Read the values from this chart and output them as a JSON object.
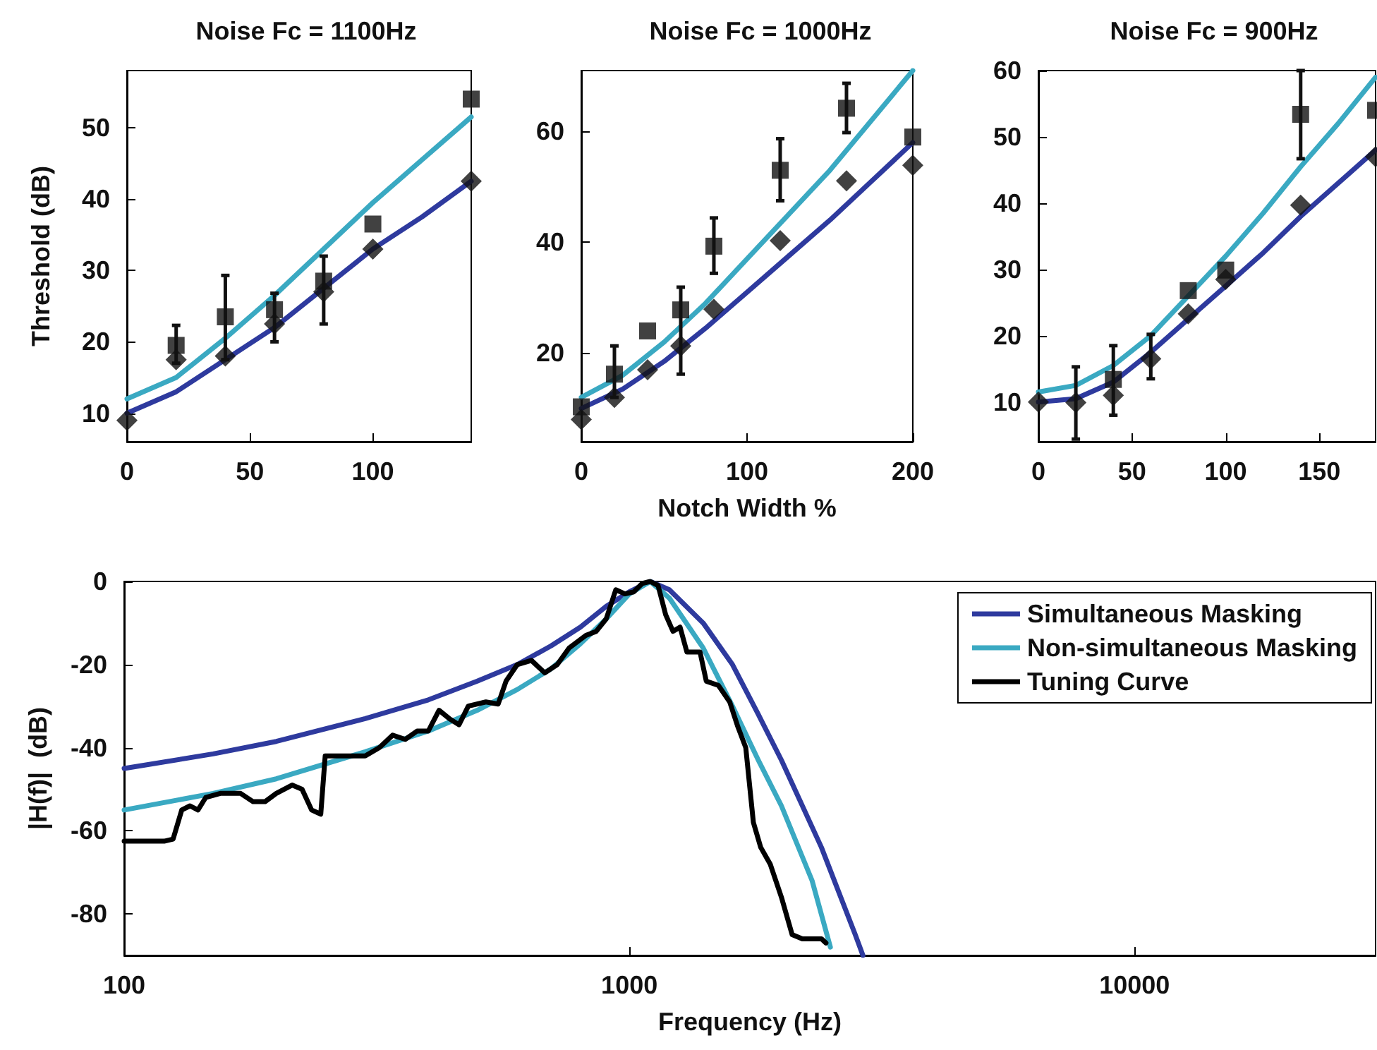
{
  "chart_data": [
    {
      "type": "line",
      "title": "Noise Fc = 1100Hz",
      "ylabel": "Threshold (dB)",
      "xlim": [
        0,
        140
      ],
      "ylim": [
        6,
        58
      ],
      "xticks": [
        0,
        50,
        100
      ],
      "yticks": [
        10,
        20,
        30,
        40,
        50
      ],
      "grid": false,
      "series": [
        {
          "type": "line",
          "color": "#3aa9c2",
          "x": [
            0,
            20,
            40,
            60,
            80,
            100,
            120,
            140
          ],
          "values": [
            12,
            15,
            20.5,
            26.5,
            33,
            39.5,
            45.5,
            51.5
          ]
        },
        {
          "type": "line",
          "color": "#2e3a9e",
          "x": [
            0,
            20,
            40,
            60,
            80,
            100,
            120,
            140
          ],
          "values": [
            10,
            13,
            17.5,
            22,
            27.5,
            33,
            37.5,
            42.5
          ]
        },
        {
          "type": "scatter",
          "marker": "square",
          "color": "#111111",
          "x": [
            20,
            40,
            60,
            80,
            100,
            140
          ],
          "values": [
            19.5,
            23.5,
            24.5,
            28.5,
            36.5,
            54
          ],
          "errors": [
            [
              17,
              22.3
            ],
            [
              17.5,
              29.3
            ],
            [
              20,
              26.8
            ],
            [
              22.5,
              32
            ],
            null,
            null
          ]
        },
        {
          "type": "scatter",
          "marker": "diamond",
          "color": "#111111",
          "x": [
            0,
            20,
            40,
            60,
            80,
            100,
            140
          ],
          "values": [
            9,
            17.5,
            18,
            22.5,
            27,
            33,
            42.5
          ]
        }
      ]
    },
    {
      "type": "line",
      "title": "Noise Fc = 1000Hz",
      "xlabel": "Notch Width %",
      "xlim": [
        0,
        200
      ],
      "ylim": [
        4,
        71
      ],
      "xticks": [
        0,
        100,
        200
      ],
      "yticks": [
        20,
        40,
        60
      ],
      "grid": false,
      "series": [
        {
          "type": "line",
          "color": "#3aa9c2",
          "x": [
            0,
            25,
            50,
            75,
            100,
            125,
            150,
            175,
            200
          ],
          "values": [
            12,
            16,
            22,
            29,
            37,
            45,
            53,
            62,
            71
          ]
        },
        {
          "type": "line",
          "color": "#2e3a9e",
          "x": [
            0,
            25,
            50,
            75,
            100,
            125,
            150,
            175,
            200
          ],
          "values": [
            10,
            13.5,
            18.5,
            24.5,
            31,
            37.5,
            44,
            51,
            58
          ]
        },
        {
          "type": "scatter",
          "marker": "square",
          "color": "#111111",
          "x": [
            0,
            20,
            40,
            60,
            80,
            120,
            160,
            200
          ],
          "values": [
            10.3,
            16.2,
            24,
            27.8,
            39.3,
            53,
            64.2,
            59
          ],
          "errors": [
            null,
            [
              12,
              21.3
            ],
            null,
            [
              16.2,
              31.9
            ],
            [
              34.4,
              44.4
            ],
            [
              47.5,
              58.7
            ],
            [
              59.8,
              68.7
            ],
            null
          ]
        },
        {
          "type": "scatter",
          "marker": "diamond",
          "color": "#111111",
          "x": [
            0,
            20,
            40,
            60,
            80,
            120,
            160,
            200
          ],
          "values": [
            8,
            12,
            17,
            21.3,
            27.9,
            40.3,
            51.1,
            53.9
          ]
        }
      ]
    },
    {
      "type": "line",
      "title": "Noise Fc = 900Hz",
      "xlim": [
        0,
        180
      ],
      "ylim": [
        4,
        60
      ],
      "xticks": [
        0,
        50,
        100,
        150
      ],
      "yticks": [
        10,
        20,
        30,
        40,
        50,
        60
      ],
      "grid": false,
      "series": [
        {
          "type": "line",
          "color": "#3aa9c2",
          "x": [
            0,
            20,
            40,
            60,
            80,
            100,
            120,
            140,
            160,
            180
          ],
          "values": [
            11.5,
            12.5,
            15.5,
            20,
            26,
            32,
            38.5,
            45.5,
            52,
            59
          ]
        },
        {
          "type": "line",
          "color": "#2e3a9e",
          "x": [
            0,
            20,
            40,
            60,
            80,
            100,
            120,
            140,
            160,
            180
          ],
          "values": [
            10,
            10.5,
            13,
            17.5,
            22.5,
            27.5,
            32.5,
            38,
            43,
            48
          ]
        },
        {
          "type": "scatter",
          "marker": "square",
          "color": "#111111",
          "x": [
            40,
            80,
            100,
            140,
            180
          ],
          "values": [
            13.4,
            26.8,
            29.9,
            53.4,
            54
          ],
          "errors": [
            [
              8,
              18.5
            ],
            null,
            null,
            [
              46.7,
              60
            ],
            null
          ]
        },
        {
          "type": "scatter",
          "marker": "diamond",
          "color": "#111111",
          "x": [
            0,
            20,
            40,
            60,
            80,
            100,
            140,
            180
          ],
          "values": [
            10,
            9.9,
            11,
            16.5,
            23.3,
            28.5,
            39.7,
            47
          ],
          "errors": [
            null,
            [
              4.4,
              15.3
            ],
            null,
            [
              13.5,
              20.2
            ],
            null,
            null,
            null,
            null
          ]
        }
      ]
    },
    {
      "type": "line",
      "xlabel": "Frequency (Hz)",
      "ylabel": "|H(f)|  (dB)",
      "log": "x",
      "xlim": [
        100,
        30000
      ],
      "ylim": [
        -90,
        0
      ],
      "xticks": [
        100,
        1000,
        10000
      ],
      "yticks": [
        -80,
        -60,
        -40,
        -20,
        0
      ],
      "grid": false,
      "legend": "top right",
      "series": [
        {
          "name": "Simultaneous Masking",
          "color": "#2e3a9e",
          "x": [
            100,
            150,
            200,
            300,
            400,
            500,
            600,
            700,
            800,
            900,
            1000,
            1100,
            1200,
            1400,
            1600,
            1800,
            2000,
            2400,
            2800,
            2900
          ],
          "values": [
            -45,
            -41.5,
            -38.5,
            -33,
            -28.5,
            -24,
            -20,
            -15.5,
            -11,
            -6,
            -2.5,
            0,
            -2,
            -10,
            -20,
            -32,
            -43,
            -64,
            -85,
            -90
          ]
        },
        {
          "name": "Non-simultaneous Masking",
          "color": "#3aa9c2",
          "x": [
            100,
            150,
            200,
            300,
            400,
            500,
            600,
            700,
            800,
            900,
            1000,
            1100,
            1200,
            1400,
            1600,
            1800,
            2000,
            2300,
            2500
          ],
          "values": [
            -55,
            -51,
            -47.5,
            -41,
            -36,
            -31,
            -26,
            -21,
            -15,
            -9,
            -3,
            0,
            -4,
            -16,
            -30,
            -43,
            -54,
            -72,
            -88
          ]
        },
        {
          "name": "Tuning Curve",
          "color": "#000000",
          "x": [
            100,
            120,
            125,
            130,
            135,
            140,
            145,
            155,
            170,
            180,
            190,
            200,
            215,
            225,
            235,
            245,
            250,
            270,
            300,
            320,
            340,
            360,
            380,
            400,
            420,
            440,
            460,
            480,
            520,
            550,
            570,
            600,
            640,
            680,
            720,
            760,
            820,
            860,
            900,
            940,
            980,
            1020,
            1060,
            1100,
            1140,
            1180,
            1220,
            1260,
            1300,
            1380,
            1420,
            1500,
            1580,
            1640,
            1700,
            1760,
            1820,
            1900,
            2000,
            2100,
            2200,
            2400,
            2450
          ],
          "values": [
            -62.5,
            -62.5,
            -62,
            -55,
            -54,
            -55,
            -52,
            -51,
            -51,
            -53,
            -53,
            -51,
            -49,
            -50,
            -55,
            -56,
            -42,
            -42,
            -42,
            -40,
            -37,
            -38,
            -36,
            -36,
            -31,
            -33,
            -34.5,
            -30,
            -29,
            -29.5,
            -24,
            -20,
            -19,
            -22,
            -20,
            -16,
            -13,
            -12,
            -9,
            -2,
            -3,
            -2.5,
            -0.5,
            0,
            -1,
            -8,
            -12,
            -11,
            -17,
            -17,
            -24,
            -25,
            -29,
            -35,
            -40,
            -58,
            -64,
            -68,
            -76,
            -85,
            -86,
            -86,
            -87
          ]
        }
      ]
    }
  ]
}
